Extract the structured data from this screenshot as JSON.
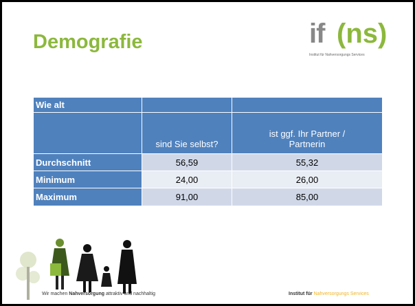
{
  "header": {
    "title": "Demografie",
    "logo": {
      "if": "if",
      "ns": "ns",
      "subtitle": "Institut für Nahversorgungs Services"
    }
  },
  "table": {
    "corner": "Wie alt",
    "columns": [
      "sind Sie selbst?",
      "ist ggf. Ihr Partner / Partnerin"
    ],
    "rows": [
      {
        "label": "Durchschnitt",
        "values": [
          "56,59",
          "55,32"
        ]
      },
      {
        "label": "Minimum",
        "values": [
          "24,00",
          "26,00"
        ]
      },
      {
        "label": "Maximum",
        "values": [
          "91,00",
          "85,00"
        ]
      }
    ]
  },
  "footer": {
    "left": [
      "Wir machen",
      "Nahversorgung",
      "attraktiv und nachhaltig"
    ],
    "right": [
      "Institut für",
      "Nahversorgungs Services"
    ]
  }
}
